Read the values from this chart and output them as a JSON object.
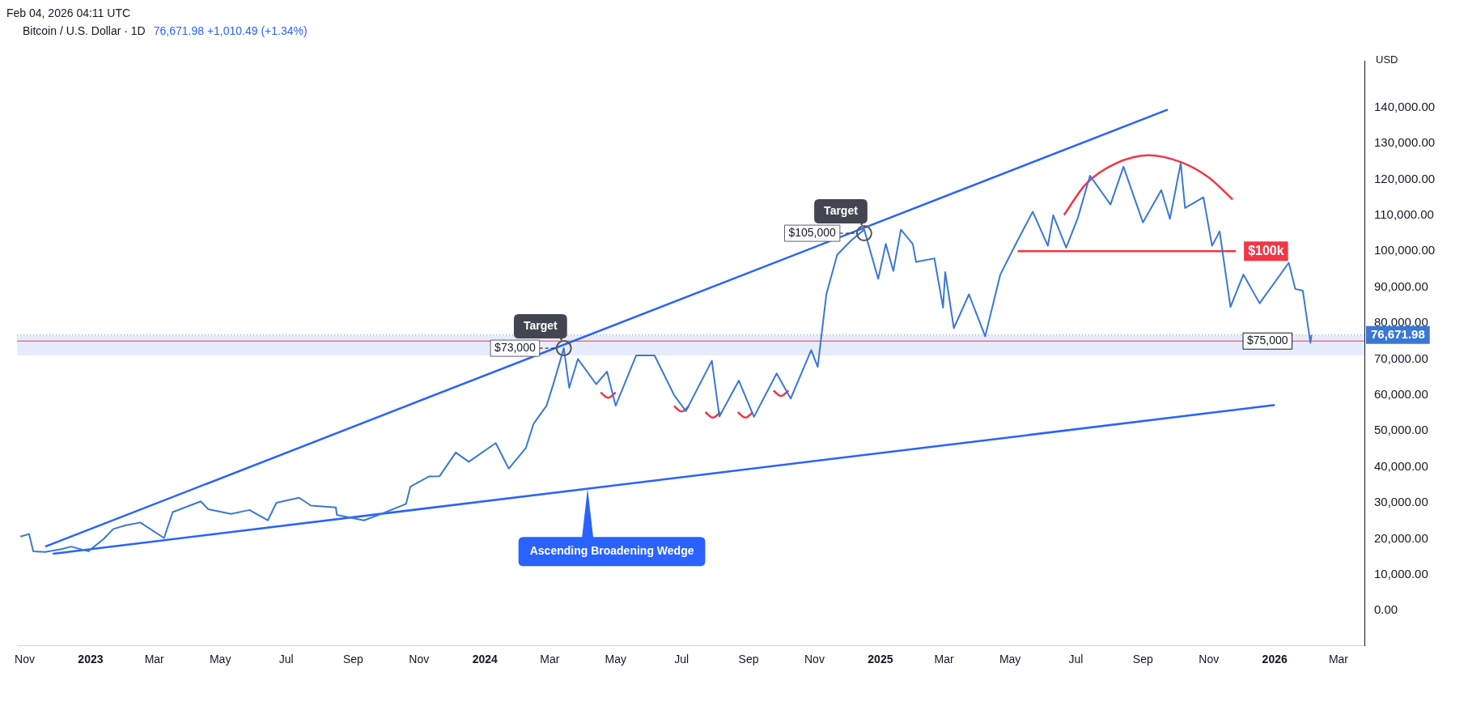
{
  "chart_data": {
    "type": "line",
    "title": "Bitcoin / U.S. Dollar · 1D",
    "subtitle": "76,671.98 +1,010.49 (+1.34%)",
    "ylabel": "USD",
    "annotations": [
      "Feb 04, 2026 04:11 UTC",
      {
        "text": "Target",
        "x": "2024-03-14",
        "y": 73000
      },
      {
        "text": "$73,000",
        "x": "2024-03-14",
        "y": 73000
      },
      {
        "text": "Target",
        "x": "2024-12-17",
        "y": 105000
      },
      {
        "text": "$105,000",
        "x": "2024-12-17",
        "y": 105000
      },
      {
        "text": "$100k",
        "x": "2025-11-26",
        "y": 100000
      },
      {
        "text": "Ascending Broadening Wedge",
        "x": "2024-04-05",
        "y": 34000
      }
    ],
    "xlim": [
      "2022-10-25",
      "2026-03-25"
    ],
    "xticks": [
      {
        "value": "2022-11-01",
        "label": "Nov"
      },
      {
        "value": "2023-01-01",
        "label": "2023"
      },
      {
        "value": "2023-03-01",
        "label": "Mar"
      },
      {
        "value": "2023-05-01",
        "label": "May"
      },
      {
        "value": "2023-07-01",
        "label": "Jul"
      },
      {
        "value": "2023-09-01",
        "label": "Sep"
      },
      {
        "value": "2023-11-01",
        "label": "Nov"
      },
      {
        "value": "2024-01-01",
        "label": "2024"
      },
      {
        "value": "2024-03-01",
        "label": "Mar"
      },
      {
        "value": "2024-05-01",
        "label": "May"
      },
      {
        "value": "2024-07-01",
        "label": "Jul"
      },
      {
        "value": "2024-09-01",
        "label": "Sep"
      },
      {
        "value": "2024-11-01",
        "label": "Nov"
      },
      {
        "value": "2025-01-01",
        "label": "2025"
      },
      {
        "value": "2025-03-01",
        "label": "Mar"
      },
      {
        "value": "2025-05-01",
        "label": "May"
      },
      {
        "value": "2025-07-01",
        "label": "Jul"
      },
      {
        "value": "2025-09-01",
        "label": "Sep"
      },
      {
        "value": "2025-11-01",
        "label": "Nov"
      },
      {
        "value": "2026-01-01",
        "label": "2026"
      },
      {
        "value": "2026-03-01",
        "label": "Mar"
      }
    ],
    "ylim": [
      -9700,
      153000
    ],
    "yticks": [
      {
        "value": 0,
        "label": "0.00"
      },
      {
        "value": 10000,
        "label": "10,000.00"
      },
      {
        "value": 20000,
        "label": "20,000.00"
      },
      {
        "value": 30000,
        "label": "30,000.00"
      },
      {
        "value": 40000,
        "label": "40,000.00"
      },
      {
        "value": 50000,
        "label": "50,000.00"
      },
      {
        "value": 60000,
        "label": "60,000.00"
      },
      {
        "value": 70000,
        "label": "70,000.00"
      },
      {
        "value": 80000,
        "label": "80,000.00"
      },
      {
        "value": 90000,
        "label": "90,000.00"
      },
      {
        "value": 100000,
        "label": "100,000.00"
      },
      {
        "value": 110000,
        "label": "110,000.00"
      },
      {
        "value": 120000,
        "label": "120,000.00"
      },
      {
        "value": 130000,
        "label": "130,000.00"
      },
      {
        "value": 140000,
        "label": "140,000.00"
      }
    ],
    "legend": false,
    "ref_lines": [
      {
        "axis": "y",
        "value": 76671.98,
        "label": "76,671.98",
        "color": "#3a78d4",
        "line_style": "dotted"
      },
      {
        "axis": "y",
        "value": 75000,
        "label": "$75,000",
        "color": "#f23645",
        "line_style": "solid"
      }
    ],
    "bands": [
      {
        "axis": "y",
        "from": 71000,
        "to": 76500,
        "color": "#e6ecfb"
      }
    ],
    "series": [
      {
        "color": "#3a78d4",
        "x": [
          "2022-10-28",
          "2022-11-05",
          "2022-11-09",
          "2022-11-20",
          "2022-12-05",
          "2022-12-14",
          "2022-12-30",
          "2023-01-13",
          "2023-01-22",
          "2023-02-02",
          "2023-02-16",
          "2023-03-10",
          "2023-03-18",
          "2023-04-13",
          "2023-04-20",
          "2023-05-11",
          "2023-05-28",
          "2023-06-14",
          "2023-06-22",
          "2023-07-13",
          "2023-07-24",
          "2023-08-16",
          "2023-08-17",
          "2023-09-11",
          "2023-09-28",
          "2023-10-20",
          "2023-10-24",
          "2023-11-10",
          "2023-11-20",
          "2023-12-05",
          "2023-12-17",
          "2024-01-11",
          "2024-01-23",
          "2024-02-08",
          "2024-02-15",
          "2024-02-27",
          "2024-03-05",
          "2024-03-14",
          "2024-03-19",
          "2024-03-27",
          "2024-04-13",
          "2024-04-23",
          "2024-05-01",
          "2024-05-20",
          "2024-06-06",
          "2024-06-24",
          "2024-07-05",
          "2024-07-29",
          "2024-08-05",
          "2024-08-23",
          "2024-09-06",
          "2024-09-27",
          "2024-10-10",
          "2024-10-29",
          "2024-11-04",
          "2024-11-12",
          "2024-11-22",
          "2024-12-05",
          "2024-12-17",
          "2024-12-30",
          "2025-01-06",
          "2025-01-13",
          "2025-01-20",
          "2025-01-31",
          "2025-02-03",
          "2025-02-20",
          "2025-02-28",
          "2025-03-02",
          "2025-03-10",
          "2025-03-24",
          "2025-04-08",
          "2025-04-22",
          "2025-05-08",
          "2025-05-22",
          "2025-06-05",
          "2025-06-10",
          "2025-06-22",
          "2025-07-03",
          "2025-07-14",
          "2025-08-02",
          "2025-08-14",
          "2025-09-01",
          "2025-09-18",
          "2025-09-26",
          "2025-10-06",
          "2025-10-10",
          "2025-10-27",
          "2025-11-04",
          "2025-11-11",
          "2025-11-21",
          "2025-12-03",
          "2025-12-18",
          "2026-01-14",
          "2026-01-20",
          "2026-01-27",
          "2026-02-03",
          "2026-02-04"
        ],
        "values": [
          20600,
          21300,
          16500,
          16300,
          17100,
          17800,
          16500,
          19900,
          22700,
          23700,
          24500,
          20200,
          27400,
          30400,
          28200,
          26900,
          28000,
          25100,
          30000,
          31400,
          29200,
          28700,
          26600,
          25100,
          27000,
          29700,
          34500,
          37300,
          37400,
          44000,
          41400,
          46600,
          39500,
          45300,
          52000,
          57000,
          63700,
          73000,
          62000,
          70000,
          63000,
          66500,
          57000,
          71000,
          71000,
          60000,
          55500,
          69500,
          54000,
          64000,
          53900,
          66000,
          59000,
          72500,
          67800,
          88000,
          99000,
          103000,
          106000,
          92300,
          102000,
          94500,
          106000,
          102000,
          97000,
          98000,
          84300,
          94200,
          78600,
          88000,
          76300,
          93500,
          103000,
          111000,
          101500,
          110000,
          101000,
          109500,
          121000,
          113000,
          123500,
          108000,
          117000,
          109000,
          124500,
          112000,
          115000,
          101500,
          105500,
          84500,
          93500,
          85500,
          96800,
          89500,
          89000,
          74500,
          76700
        ]
      },
      {
        "type": "scatter",
        "marker": "circle",
        "color": "#555555",
        "x": [
          "2024-03-14",
          "2024-12-17"
        ],
        "values": [
          73000,
          105000
        ]
      },
      {
        "color": "#2962ff",
        "x": [
          "2022-11-20",
          "2025-09-24"
        ],
        "values": [
          17800,
          139400
        ]
      },
      {
        "color": "#2962ff",
        "x": [
          "2022-11-27",
          "2026-01-01"
        ],
        "values": [
          15800,
          57200
        ]
      },
      {
        "color": "#f23645",
        "x": [
          "2025-05-08",
          "2025-11-26"
        ],
        "values": [
          100000,
          100000
        ]
      },
      {
        "color": "#f23645",
        "x": [
          "2025-06-20",
          "2025-07-10",
          "2025-08-06",
          "2025-09-06",
          "2025-10-06",
          "2025-11-01",
          "2025-11-23"
        ],
        "values": [
          110100,
          118600,
          124300,
          126700,
          124800,
          120500,
          114400
        ]
      },
      {
        "color": "#f23645",
        "x": [
          "2024-04-17",
          "2024-04-24",
          "2024-05-01"
        ],
        "values": [
          60700,
          59200,
          60700
        ]
      },
      {
        "color": "#f23645",
        "x": [
          "2024-06-24",
          "2024-07-01",
          "2024-07-08"
        ],
        "values": [
          56900,
          55400,
          56900
        ]
      },
      {
        "color": "#f23645",
        "x": [
          "2024-07-23",
          "2024-07-30",
          "2024-08-06"
        ],
        "values": [
          55200,
          53700,
          55200
        ]
      },
      {
        "color": "#f23645",
        "x": [
          "2024-08-22",
          "2024-08-29",
          "2024-09-05"
        ],
        "values": [
          55200,
          53700,
          55200
        ]
      },
      {
        "color": "#f23645",
        "x": [
          "2024-09-24",
          "2024-10-01",
          "2024-10-08"
        ],
        "values": [
          61200,
          59700,
          61200
        ]
      }
    ]
  }
}
